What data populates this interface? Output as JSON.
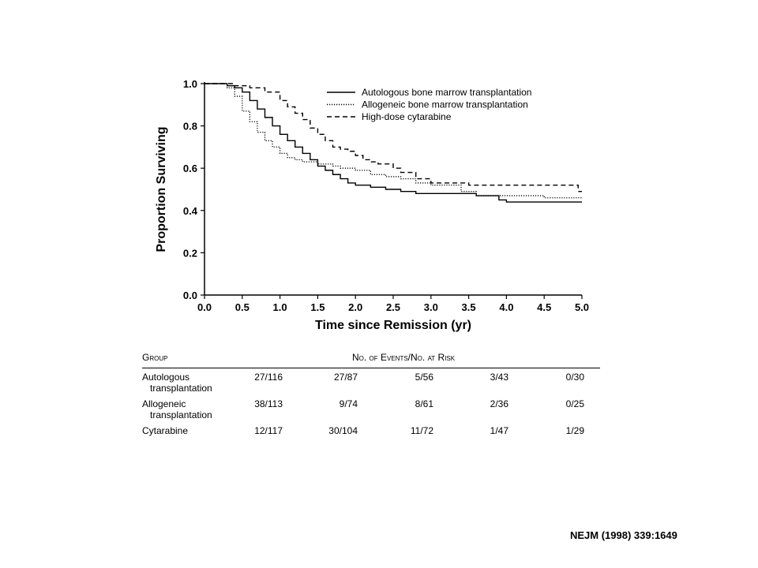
{
  "chart_data": {
    "type": "line",
    "title": "",
    "xlabel": "Time since Remission (yr)",
    "ylabel": "Proportion Surviving",
    "xlim": [
      0,
      5
    ],
    "ylim": [
      0,
      1
    ],
    "x_ticks": [
      "0.0",
      "0.5",
      "1.0",
      "1.5",
      "2.0",
      "2.5",
      "3.0",
      "3.5",
      "4.0",
      "4.5",
      "5.0"
    ],
    "y_ticks": [
      "0.0",
      "0.2",
      "0.4",
      "0.6",
      "0.8",
      "1.0"
    ],
    "legend_position": "top-right",
    "grid": false,
    "series": [
      {
        "name": "Autologous bone marrow transplantation",
        "dash": "solid",
        "x": [
          0,
          0.2,
          0.3,
          0.4,
          0.5,
          0.6,
          0.7,
          0.8,
          0.9,
          1.0,
          1.1,
          1.2,
          1.3,
          1.4,
          1.5,
          1.6,
          1.7,
          1.8,
          1.9,
          2.0,
          2.2,
          2.4,
          2.6,
          2.8,
          3.0,
          3.3,
          3.6,
          3.9,
          4.0,
          4.5,
          5.0
        ],
        "y": [
          1.0,
          1.0,
          0.99,
          0.98,
          0.96,
          0.92,
          0.88,
          0.84,
          0.8,
          0.76,
          0.73,
          0.7,
          0.67,
          0.64,
          0.61,
          0.59,
          0.57,
          0.55,
          0.53,
          0.52,
          0.51,
          0.5,
          0.49,
          0.48,
          0.48,
          0.48,
          0.47,
          0.45,
          0.44,
          0.44,
          0.44
        ]
      },
      {
        "name": "Allogeneic bone marrow transplantation",
        "dash": "dotted",
        "x": [
          0,
          0.2,
          0.3,
          0.4,
          0.5,
          0.6,
          0.7,
          0.8,
          0.9,
          1.0,
          1.1,
          1.2,
          1.3,
          1.4,
          1.5,
          1.6,
          1.7,
          1.8,
          2.0,
          2.2,
          2.4,
          2.6,
          2.8,
          3.0,
          3.4,
          3.6,
          4.0,
          4.5,
          5.0
        ],
        "y": [
          1.0,
          1.0,
          0.98,
          0.94,
          0.87,
          0.82,
          0.77,
          0.73,
          0.7,
          0.67,
          0.65,
          0.64,
          0.63,
          0.63,
          0.62,
          0.62,
          0.61,
          0.6,
          0.59,
          0.57,
          0.56,
          0.55,
          0.53,
          0.52,
          0.49,
          0.47,
          0.47,
          0.46,
          0.46
        ]
      },
      {
        "name": "High-dose cytarabine",
        "dash": "dashed",
        "x": [
          0,
          0.2,
          0.4,
          0.6,
          0.8,
          1.0,
          1.1,
          1.2,
          1.3,
          1.4,
          1.5,
          1.6,
          1.7,
          1.8,
          1.9,
          2.0,
          2.1,
          2.2,
          2.3,
          2.5,
          2.6,
          2.8,
          3.0,
          3.5,
          4.0,
          4.5,
          4.9,
          4.95,
          5.0
        ],
        "y": [
          1.0,
          1.0,
          0.99,
          0.98,
          0.96,
          0.92,
          0.89,
          0.86,
          0.83,
          0.79,
          0.76,
          0.73,
          0.7,
          0.69,
          0.68,
          0.66,
          0.64,
          0.63,
          0.62,
          0.6,
          0.58,
          0.55,
          0.53,
          0.52,
          0.52,
          0.52,
          0.52,
          0.49,
          0.49
        ]
      }
    ]
  },
  "risk_table": {
    "group_header": "Group",
    "events_header": "No. of Events/No. at Risk",
    "rows": [
      {
        "label_line1": "Autologous",
        "label_line2": "transplantation",
        "values": [
          "27/116",
          "27/87",
          "5/56",
          "3/43",
          "0/30"
        ]
      },
      {
        "label_line1": "Allogeneic",
        "label_line2": "transplantation",
        "values": [
          "38/113",
          "9/74",
          "8/61",
          "2/36",
          "0/25"
        ]
      },
      {
        "label_line1": "Cytarabine",
        "label_line2": "",
        "values": [
          "12/117",
          "30/104",
          "11/72",
          "1/47",
          "1/29"
        ]
      }
    ]
  },
  "citation": "NEJM (1998) 339:1649"
}
